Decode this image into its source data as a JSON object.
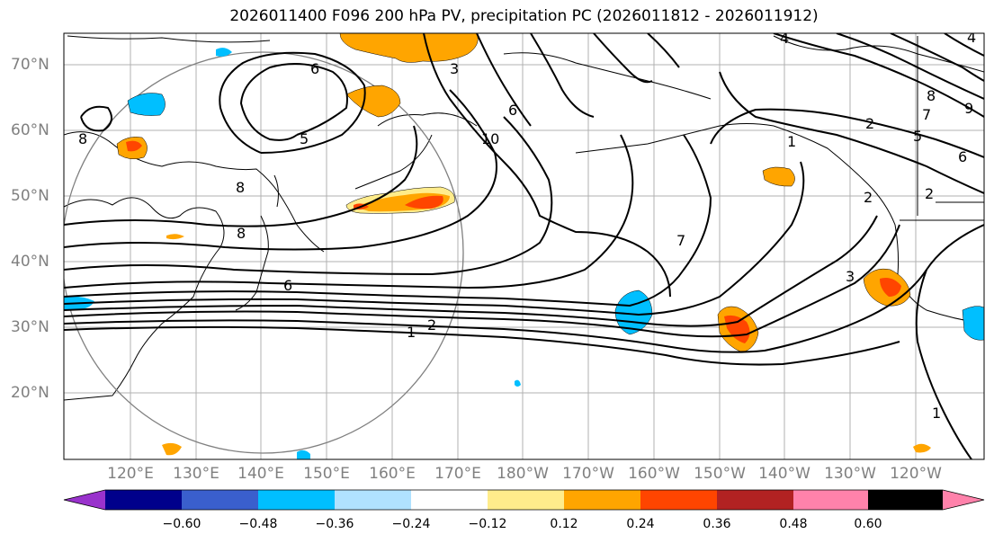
{
  "title": "2026011400 F096 200 hPa PV, precipitation PC (2026011812 - 2026011912)",
  "lat_labels": [
    "70°N",
    "60°N",
    "50°N",
    "40°N",
    "30°N",
    "20°N"
  ],
  "lon_labels": [
    "120°E",
    "130°E",
    "140°E",
    "150°E",
    "160°E",
    "170°E",
    "180°W",
    "170°W",
    "160°W",
    "150°W",
    "140°W",
    "130°W",
    "120°W"
  ],
  "contour_labels": [
    "6",
    "5",
    "8",
    "8",
    "6",
    "10",
    "1",
    "2",
    "1",
    "2",
    "3",
    "2",
    "4",
    "5",
    "6",
    "7",
    "8",
    "9",
    "4",
    "1",
    "2",
    "3",
    "7",
    "6",
    "8"
  ],
  "colorbar": {
    "ticks": [
      "−0.60",
      "−0.48",
      "−0.36",
      "−0.24",
      "−0.12",
      "0.12",
      "0.24",
      "0.36",
      "0.48",
      "0.60"
    ],
    "colors": [
      "#9932cc",
      "#00008b",
      "#3a5fcd",
      "#00bfff",
      "#b0e2ff",
      "#ffffff",
      "#ffec8b",
      "#ffa500",
      "#ff4500",
      "#b22222",
      "#ff82ab"
    ]
  }
}
